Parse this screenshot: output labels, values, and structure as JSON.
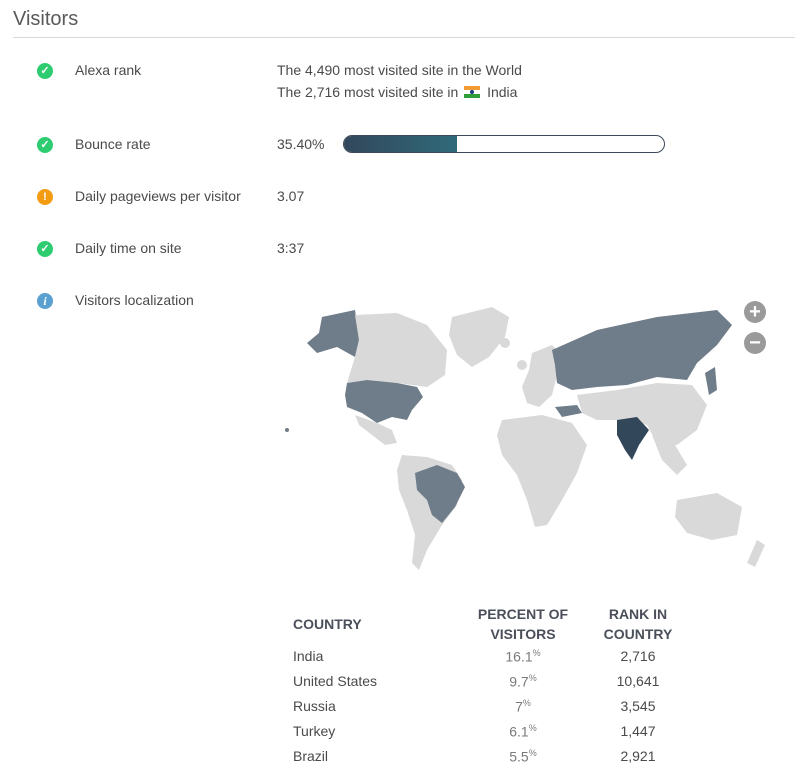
{
  "section": {
    "title": "Visitors"
  },
  "metrics": {
    "alexa": {
      "label": "Alexa rank",
      "status": "ok",
      "line1": "The 4,490 most visited site in the World",
      "line2_prefix": "The 2,716 most visited site in",
      "line2_country": "India"
    },
    "bounce": {
      "label": "Bounce rate",
      "status": "ok",
      "value": "35.40%",
      "fraction": 0.354
    },
    "pageviews": {
      "label": "Daily pageviews per visitor",
      "status": "warning",
      "value": "3.07"
    },
    "time": {
      "label": "Daily time on site",
      "status": "ok",
      "value": "3:37"
    },
    "localization": {
      "label": "Visitors localization",
      "status": "info"
    }
  },
  "map_controls": {
    "zoom_in": "+",
    "zoom_out": "−"
  },
  "colors": {
    "ok": "#2ecc71",
    "warning": "#f39c12",
    "info": "#5aa0d0",
    "map_base": "#d9d9d9",
    "map_mid": "#6f7c89",
    "map_high": "#33475b"
  },
  "table": {
    "headers": {
      "country": "COUNTRY",
      "percent_l1": "PERCENT OF",
      "percent_l2": "VISITORS",
      "rank_l1": "RANK IN",
      "rank_l2": "COUNTRY"
    },
    "percent_unit": "%",
    "rows": [
      {
        "country": "India",
        "percent": "16.1",
        "rank": "2,716"
      },
      {
        "country": "United States",
        "percent": "9.7",
        "rank": "10,641"
      },
      {
        "country": "Russia",
        "percent": "7",
        "rank": "3,545"
      },
      {
        "country": "Turkey",
        "percent": "6.1",
        "rank": "1,447"
      },
      {
        "country": "Brazil",
        "percent": "5.5",
        "rank": "2,921"
      }
    ]
  }
}
